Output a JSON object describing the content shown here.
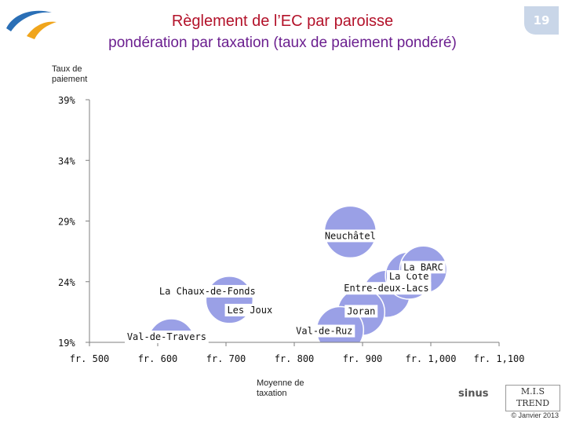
{
  "page": {
    "number": "19",
    "copyright": "© Janvier 2013"
  },
  "header": {
    "title_line1": "Règlement de l’EC par paroisse",
    "title_line2": "pondération par taxation (taux de paiement pondéré)"
  },
  "logos": {
    "sinus": "sinus",
    "mis_trend_line1": "M.I.S",
    "mis_trend_line2": "TREND"
  },
  "colors": {
    "bubble": "#9aa0e6",
    "bubble_edge": "#ffffff",
    "axis": "#7f7f7f",
    "title_red": "#b3122a",
    "title_purple": "#6b1f8f"
  },
  "chart_data": {
    "type": "scatter",
    "title": "",
    "xlabel": "Moyenne de taxation",
    "ylabel": "Taux de paiement",
    "xlim": [
      500,
      1100
    ],
    "ylim": [
      0.19,
      0.39
    ],
    "x_ticks": [
      500,
      600,
      700,
      800,
      900,
      1000,
      1100
    ],
    "x_tick_labels": [
      "fr.  500",
      "fr.  600",
      "fr.  700",
      "fr.  800",
      "fr.  900",
      "fr.  1,000",
      "fr.  1,100"
    ],
    "y_ticks": [
      0.19,
      0.24,
      0.29,
      0.34,
      0.39
    ],
    "y_tick_labels": [
      "19%",
      "24%",
      "29%",
      "34%",
      "39%"
    ],
    "grid": false,
    "legend": "none",
    "points": [
      {
        "label": "Val-de-Travers",
        "x": 620,
        "y": 0.19,
        "size": 1
      },
      {
        "label": "La Chaux-de-Fonds",
        "x": 705,
        "y": 0.225,
        "size": 1
      },
      {
        "label": "Les Joux",
        "x": 705,
        "y": 0.225,
        "size": 1
      },
      {
        "label": "Neuchâtel",
        "x": 882,
        "y": 0.281,
        "size": 1.1
      },
      {
        "label": "Entre-deux-Lacs",
        "x": 935,
        "y": 0.23,
        "size": 1
      },
      {
        "label": "Joran",
        "x": 898,
        "y": 0.215,
        "size": 1
      },
      {
        "label": "Val-de-Ruz",
        "x": 867,
        "y": 0.2,
        "size": 1
      },
      {
        "label": "La Côte",
        "x": 968,
        "y": 0.245,
        "size": 1
      },
      {
        "label": "La BARC",
        "x": 989,
        "y": 0.25,
        "size": 1
      }
    ]
  }
}
